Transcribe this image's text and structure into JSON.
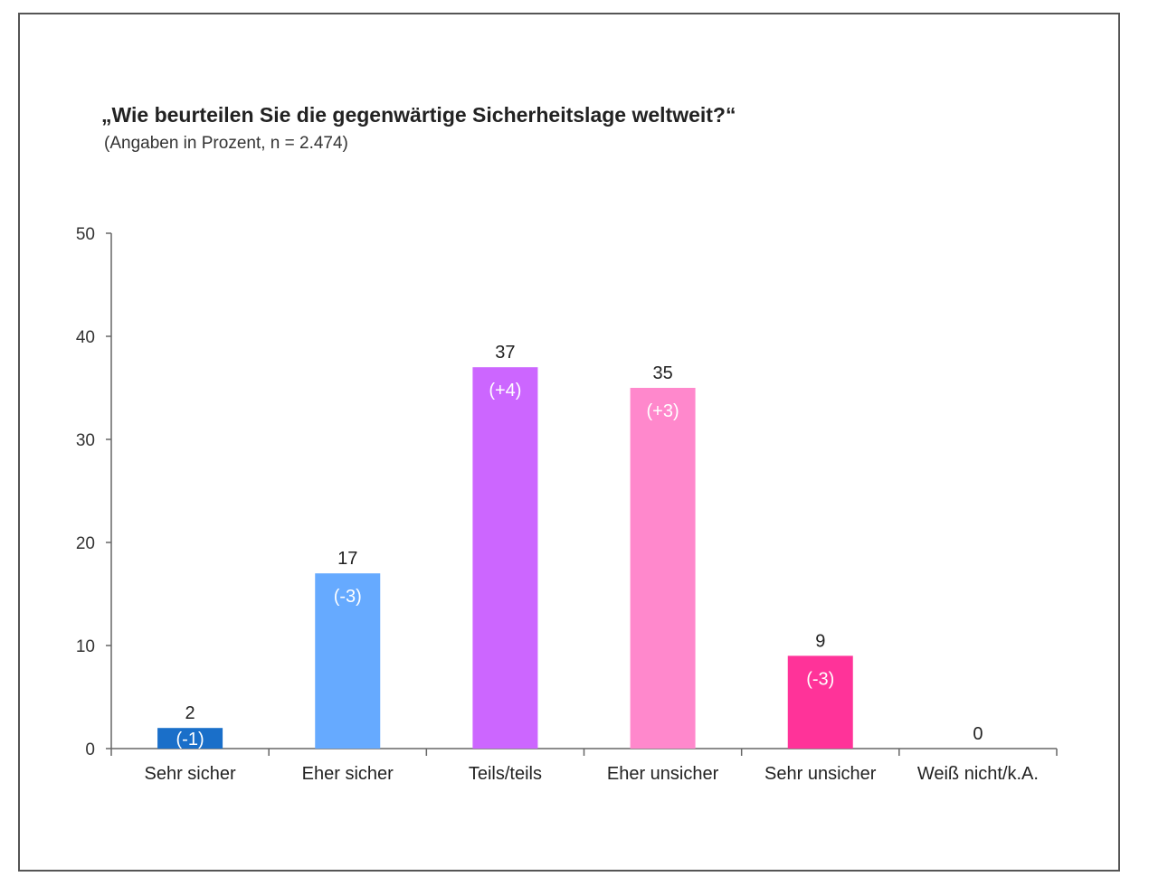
{
  "chart_data": {
    "type": "bar",
    "title": "„Wie beurteilen Sie die gegenwärtige Sicherheitslage weltweit?“",
    "subtitle": "(Angaben in Prozent, n = 2.474)",
    "xlabel": "",
    "ylabel": "",
    "ylim": [
      0,
      50
    ],
    "yticks": [
      0,
      10,
      20,
      30,
      40,
      50
    ],
    "categories": [
      "Sehr sicher",
      "Eher sicher",
      "Teils/teils",
      "Eher unsicher",
      "Sehr unsicher",
      "Weiß nicht/k.A."
    ],
    "values": [
      2,
      17,
      37,
      35,
      9,
      0
    ],
    "changes": [
      "(-1)",
      "(-3)",
      "(+4)",
      "(+3)",
      "(-3)",
      ""
    ],
    "colors": [
      "#1a6fc9",
      "#66aaff",
      "#cc66ff",
      "#ff88cc",
      "#ff3399",
      "#ffffff"
    ],
    "grid": false,
    "legend": "none"
  }
}
